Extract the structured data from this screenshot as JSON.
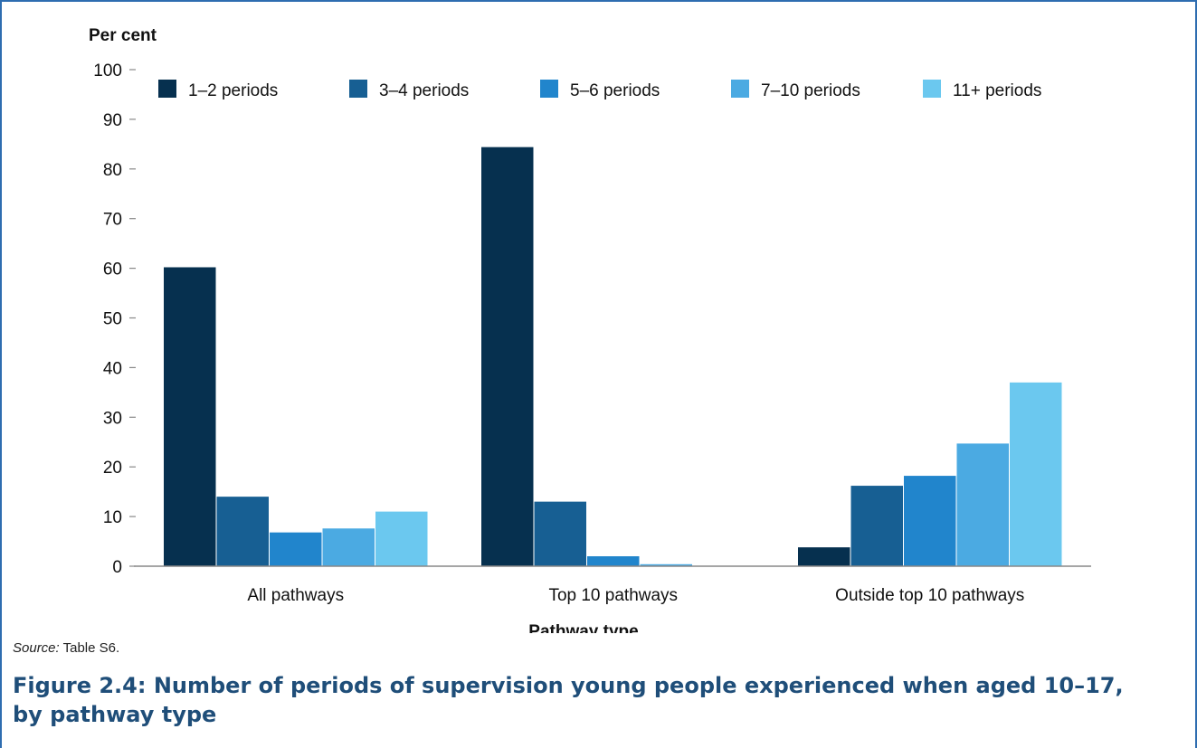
{
  "source": {
    "label": "Source:",
    "text": "Table S6."
  },
  "caption": {
    "line1": "Figure 2.4: Number of periods of supervision young people experienced when aged 10–17,",
    "line2": "by pathway type"
  },
  "colors": {
    "frame": "#2e6db0",
    "caption": "#1f4e79"
  },
  "chart_data": {
    "type": "bar",
    "title": "",
    "ylabel": "Per cent",
    "xlabel": "Pathway type",
    "ylim": [
      0,
      100
    ],
    "yticks": [
      0,
      10,
      20,
      30,
      40,
      50,
      60,
      70,
      80,
      90,
      100
    ],
    "grid": false,
    "legend_placement": "top",
    "categories": [
      "All pathways",
      "Top 10 pathways",
      "Outside top 10 pathways"
    ],
    "series": [
      {
        "name": "1–2 periods",
        "color": "#06304f",
        "values": [
          60.2,
          84.4,
          3.8
        ]
      },
      {
        "name": "3–4 periods",
        "color": "#175f93",
        "values": [
          14.0,
          13.0,
          16.2
        ]
      },
      {
        "name": "5–6 periods",
        "color": "#2185cc",
        "values": [
          6.8,
          2.0,
          18.2
        ]
      },
      {
        "name": "7–10 periods",
        "color": "#4baae2",
        "values": [
          7.6,
          0.4,
          24.7
        ]
      },
      {
        "name": "11+ periods",
        "color": "#6bc8ef",
        "values": [
          11.0,
          0.0,
          37.0
        ]
      }
    ]
  }
}
